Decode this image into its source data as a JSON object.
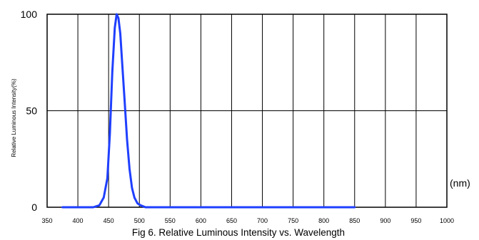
{
  "chart_data": {
    "type": "line",
    "title": "Fig 6. Relative Luminous Intensity vs. Wavelength",
    "xlabel": "(nm)",
    "ylabel": "Relative Luminous Intensity(%)",
    "xlim": [
      350,
      1000
    ],
    "ylim": [
      0,
      100
    ],
    "x_ticks": [
      "350",
      "400",
      "450",
      "500",
      "550",
      "600",
      "650",
      "700",
      "750",
      "800",
      "850",
      "900",
      "950",
      "1000"
    ],
    "y_ticks": [
      "0",
      "50",
      "100"
    ],
    "grid": true,
    "series": [
      {
        "color": "#1f3fff",
        "x": [
          375,
          425,
          435,
          442,
          448,
          452,
          456,
          460,
          463,
          466,
          469,
          472,
          476,
          480,
          484,
          488,
          492,
          497,
          502,
          510,
          520,
          850
        ],
        "y": [
          0,
          0,
          1,
          5,
          15,
          38,
          70,
          93,
          100,
          98,
          90,
          75,
          55,
          35,
          20,
          10,
          5,
          2,
          1,
          0,
          0,
          0
        ]
      }
    ]
  }
}
